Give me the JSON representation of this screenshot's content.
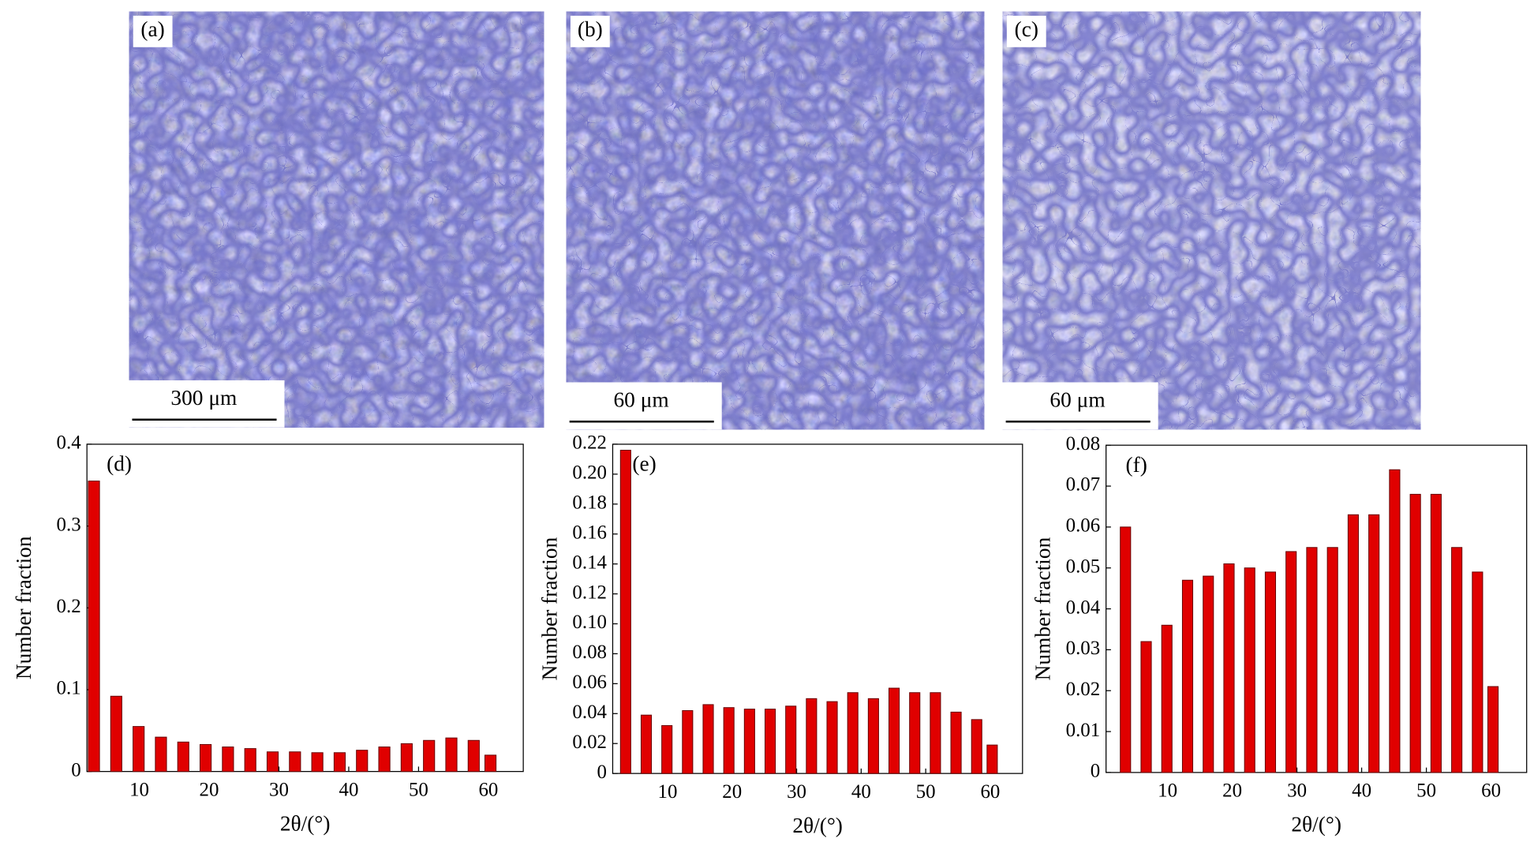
{
  "images": [
    {
      "label": "(a)",
      "scale_bar": "300 μm"
    },
    {
      "label": "(b)",
      "scale_bar": "60 μm"
    },
    {
      "label": "(c)",
      "scale_bar": "60 μm"
    }
  ],
  "chart_data": [
    {
      "type": "bar",
      "annotation": "(d)",
      "xlabel": "2θ/(°)",
      "ylabel": "Number fraction",
      "color": "#e00000",
      "x": [
        3.5,
        6.7,
        9.9,
        13.1,
        16.3,
        19.5,
        22.7,
        25.9,
        29.1,
        32.3,
        35.5,
        38.7,
        41.9,
        45.1,
        48.3,
        51.5,
        54.7,
        57.9,
        60.3
      ],
      "values": [
        0.355,
        0.092,
        0.055,
        0.042,
        0.036,
        0.033,
        0.03,
        0.028,
        0.024,
        0.024,
        0.023,
        0.023,
        0.026,
        0.03,
        0.034,
        0.038,
        0.041,
        0.038,
        0.02
      ],
      "xlim": [
        2.5,
        65
      ],
      "xticks": [
        10,
        20,
        30,
        40,
        50,
        60
      ],
      "ylim": [
        0,
        0.4
      ],
      "yticks": [
        0,
        0.1,
        0.2,
        0.3,
        0.4
      ]
    },
    {
      "type": "bar",
      "annotation": "(e)",
      "xlabel": "2θ/(°)",
      "ylabel": "Number fraction",
      "color": "#e00000",
      "x": [
        3.5,
        6.7,
        9.9,
        13.1,
        16.3,
        19.5,
        22.7,
        25.9,
        29.1,
        32.3,
        35.5,
        38.7,
        41.9,
        45.1,
        48.3,
        51.5,
        54.7,
        57.9,
        60.3
      ],
      "values": [
        0.216,
        0.039,
        0.032,
        0.042,
        0.046,
        0.044,
        0.043,
        0.043,
        0.045,
        0.05,
        0.048,
        0.054,
        0.05,
        0.057,
        0.054,
        0.054,
        0.041,
        0.036,
        0.019
      ],
      "xlim": [
        1.5,
        65
      ],
      "xticks": [
        10,
        20,
        30,
        40,
        50,
        60
      ],
      "ylim": [
        0,
        0.22
      ],
      "yticks": [
        0,
        0.02,
        0.04,
        0.06,
        0.08,
        {
          "value": 0.1,
          "label": "0.10"
        },
        0.12,
        0.14,
        0.16,
        0.18,
        {
          "value": 0.2,
          "label": "0.20"
        },
        0.22
      ]
    },
    {
      "type": "bar",
      "annotation": "(f)",
      "xlabel": "2θ/(°)",
      "ylabel": "Number fraction",
      "color": "#e00000",
      "x": [
        3.5,
        6.7,
        9.9,
        13.1,
        16.3,
        19.5,
        22.7,
        25.9,
        29.1,
        32.3,
        35.5,
        38.7,
        41.9,
        45.1,
        48.3,
        51.5,
        54.7,
        57.9,
        60.3
      ],
      "values": [
        0.06,
        0.032,
        0.036,
        0.047,
        0.048,
        0.051,
        0.05,
        0.049,
        0.054,
        0.055,
        0.055,
        0.063,
        0.063,
        0.074,
        0.068,
        0.068,
        0.055,
        0.049,
        0.021
      ],
      "xlim": [
        0.5,
        65.5
      ],
      "xticks": [
        10,
        20,
        30,
        40,
        50,
        60
      ],
      "ylim": [
        0,
        0.08
      ],
      "yticks": [
        0,
        0.01,
        0.02,
        0.03,
        0.04,
        0.05,
        0.06,
        0.07,
        0.08
      ]
    }
  ]
}
